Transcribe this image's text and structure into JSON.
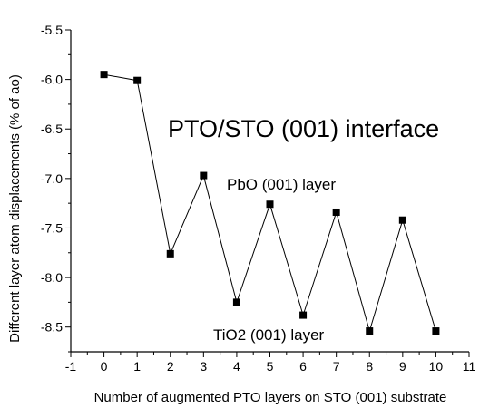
{
  "chart_data": {
    "type": "line",
    "title": "PTO/STO (001) interface",
    "xlabel": "Number of augmented PTO layers on STO (001) substrate",
    "ylabel": "Different layer atom displacements (% of ao)",
    "xlim": [
      -1,
      11
    ],
    "ylim": [
      -8.75,
      -5.5
    ],
    "x_ticks": [
      "-1",
      "0",
      "1",
      "2",
      "3",
      "4",
      "5",
      "6",
      "7",
      "8",
      "9",
      "10",
      "11"
    ],
    "y_ticks": [
      "-5.5",
      "-6.0",
      "-6.5",
      "-7.0",
      "-7.5",
      "-8.0",
      "-8.5"
    ],
    "grid": false,
    "series": [
      {
        "x": [
          0,
          1,
          2,
          3,
          4,
          5,
          6,
          7,
          8,
          9,
          10
        ],
        "values": [
          -5.95,
          -6.01,
          -7.76,
          -6.97,
          -8.25,
          -7.26,
          -8.38,
          -7.34,
          -8.54,
          -7.42,
          -8.54
        ],
        "color": "#000000",
        "marker": "square"
      }
    ],
    "annotations": [
      {
        "text": "PbO (001) layer"
      },
      {
        "text": "TiO2 (001) layer"
      }
    ]
  }
}
